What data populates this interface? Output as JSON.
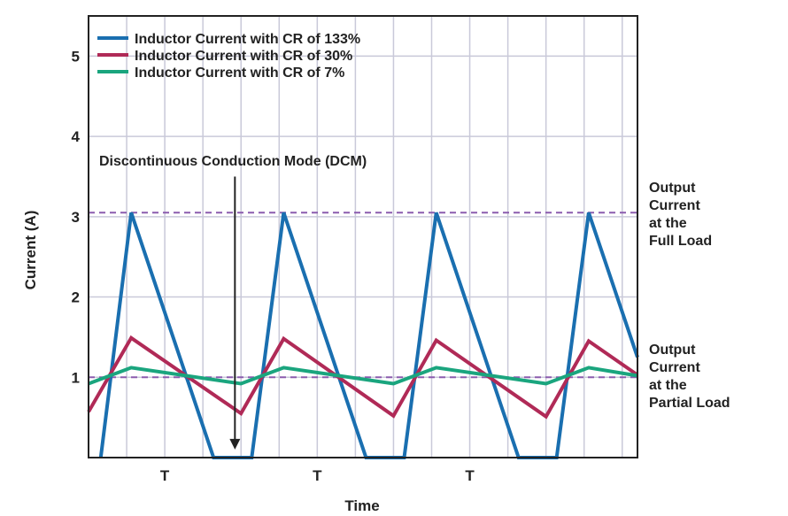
{
  "chart_data": {
    "type": "line",
    "title": "",
    "xlabel": "Time",
    "ylabel": "Current (A)",
    "xlim": [
      0,
      3.6
    ],
    "ylim": [
      0,
      5.5
    ],
    "yticks": [
      1,
      2,
      3,
      4,
      5
    ],
    "yticklabels": [
      "1",
      "2",
      "3",
      "4",
      "5"
    ],
    "period_labels": [
      {
        "x": 0.5,
        "text": "T"
      },
      {
        "x": 1.5,
        "text": "T"
      },
      {
        "x": 2.5,
        "text": "T"
      }
    ],
    "x_gridlines": [
      0.25,
      0.5,
      0.75,
      1.0,
      1.25,
      1.5,
      1.75,
      2.0,
      2.25,
      2.5,
      2.75,
      3.0,
      3.25,
      3.5
    ],
    "reference_lines": [
      {
        "name": "Output Current at the Full Load",
        "y": 3.05,
        "color": "#8b5cae",
        "label_lines": [
          "Output",
          "Current",
          "at the",
          "Full Load"
        ]
      },
      {
        "name": "Output Current at the Partial Load",
        "y": 1.0,
        "color": "#8b5cae",
        "label_lines": [
          "Output",
          "Current",
          "at the",
          "Partial Load"
        ]
      }
    ],
    "annotation": {
      "text": "Discontinuous Conduction Mode (DCM)",
      "arrow_x": 0.96,
      "arrow_y_start": 3.5,
      "arrow_y_end": 0.1
    },
    "legend_position": "top-left",
    "series": [
      {
        "name": "Inductor Current with CR of 133%",
        "color": "#1a6fb0",
        "points": [
          [
            0.08,
            0
          ],
          [
            0.28,
            3.05
          ],
          [
            0.82,
            0
          ],
          [
            1.07,
            0
          ],
          [
            1.28,
            3.05
          ],
          [
            1.82,
            0
          ],
          [
            2.07,
            0
          ],
          [
            2.28,
            3.05
          ],
          [
            2.82,
            0
          ],
          [
            3.07,
            0
          ],
          [
            3.28,
            3.05
          ],
          [
            3.6,
            1.25
          ]
        ]
      },
      {
        "name": "Inductor Current with CR of 30%",
        "color": "#b02a57",
        "points": [
          [
            0,
            0.57
          ],
          [
            0.28,
            1.49
          ],
          [
            1.0,
            0.55
          ],
          [
            1.28,
            1.48
          ],
          [
            2.0,
            0.52
          ],
          [
            2.28,
            1.46
          ],
          [
            3.0,
            0.51
          ],
          [
            3.28,
            1.45
          ],
          [
            3.6,
            1.03
          ]
        ]
      },
      {
        "name": "Inductor Current with CR of 7%",
        "color": "#1aa57e",
        "points": [
          [
            0,
            0.92
          ],
          [
            0.28,
            1.12
          ],
          [
            1.0,
            0.92
          ],
          [
            1.28,
            1.12
          ],
          [
            2.0,
            0.92
          ],
          [
            2.28,
            1.12
          ],
          [
            3.0,
            0.92
          ],
          [
            3.28,
            1.12
          ],
          [
            3.6,
            1.02
          ]
        ]
      }
    ],
    "grid": true
  }
}
